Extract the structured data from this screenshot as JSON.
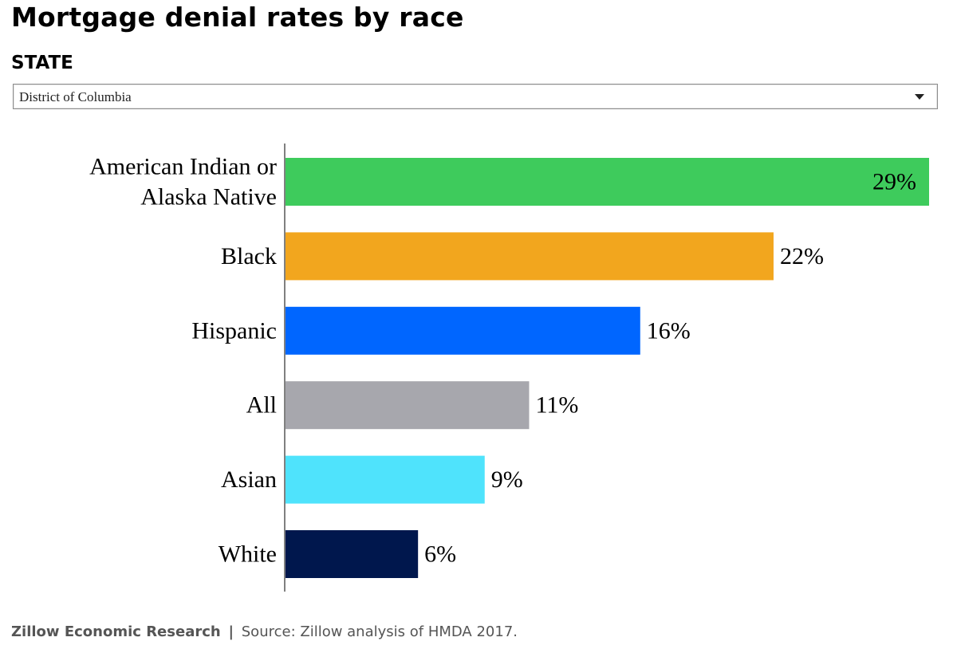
{
  "title": "Mortgage denial rates by race",
  "filter": {
    "label": "STATE",
    "selected": "District of Columbia"
  },
  "chart_data": {
    "type": "bar",
    "orientation": "horizontal",
    "categories": [
      [
        "American Indian or",
        "Alaska Native"
      ],
      [
        "Black"
      ],
      [
        "Hispanic"
      ],
      [
        "All"
      ],
      [
        "Asian"
      ],
      [
        "White"
      ]
    ],
    "values": [
      29,
      22,
      16,
      11,
      9,
      6
    ],
    "value_labels": [
      "29%",
      "22%",
      "16%",
      "11%",
      "9%",
      "6%"
    ],
    "colors": [
      "#3ecb5c",
      "#f2a61e",
      "#0066ff",
      "#a7a7ad",
      "#4fe3fc",
      "#00174d"
    ],
    "grid": false,
    "legend": "none"
  },
  "footer": {
    "org": "Zillow Economic Research",
    "separator": "|",
    "source": "Source: Zillow analysis of HMDA 2017."
  }
}
